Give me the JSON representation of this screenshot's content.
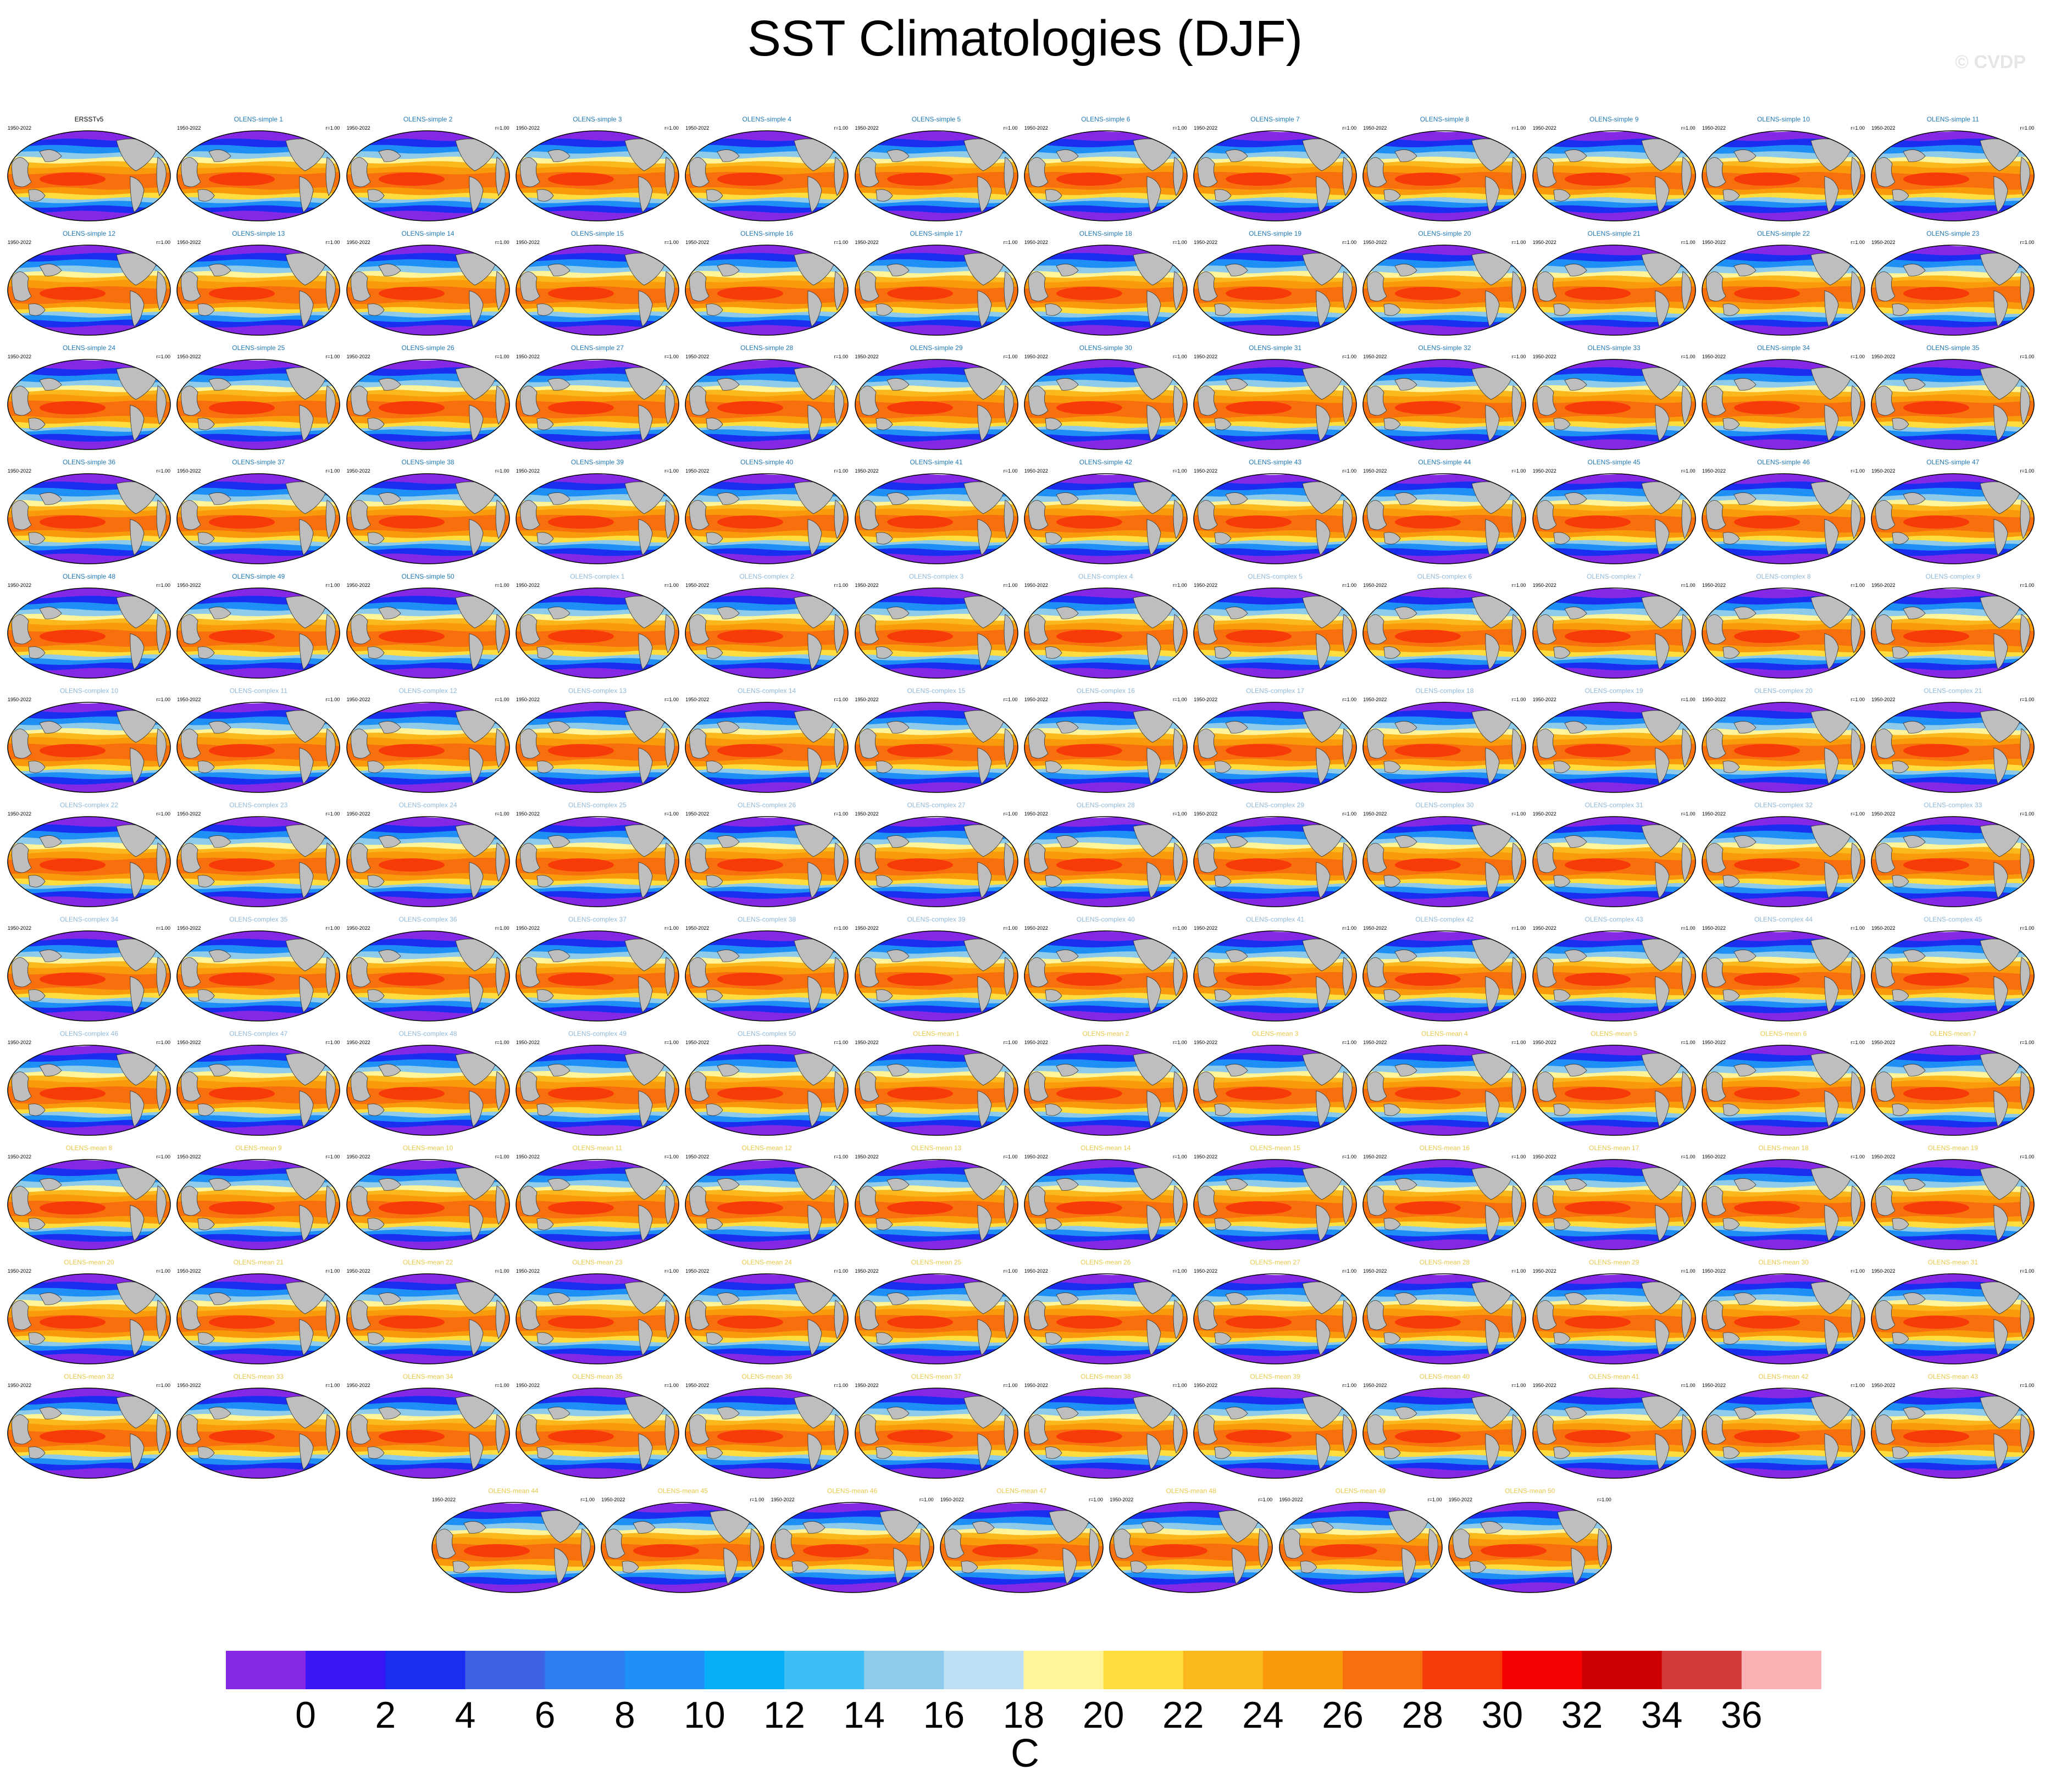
{
  "title": "SST Climatologies (DJF)",
  "watermark": "© CVDP",
  "chart_data": {
    "type": "heatmap",
    "title": "SST Climatologies (DJF)",
    "panel_years": "1950-2022",
    "panel_r_label": "r=1.00",
    "panels": [
      {
        "name": "ERSSTv5",
        "r": ""
      },
      {
        "name": "OLENS-simple 1",
        "r": "r=1.00"
      },
      {
        "name": "OLENS-simple 2",
        "r": "r=1.00"
      },
      {
        "name": "OLENS-simple 3",
        "r": "r=1.00"
      },
      {
        "name": "OLENS-simple 4",
        "r": "r=1.00"
      },
      {
        "name": "OLENS-simple 5",
        "r": "r=1.00"
      },
      {
        "name": "OLENS-simple 6",
        "r": "r=1.00"
      },
      {
        "name": "OLENS-simple 7",
        "r": "r=1.00"
      },
      {
        "name": "OLENS-simple 8",
        "r": "r=1.00"
      },
      {
        "name": "OLENS-simple 9",
        "r": "r=1.00"
      },
      {
        "name": "OLENS-simple 10",
        "r": "r=1.00"
      },
      {
        "name": "OLENS-simple 11",
        "r": "r=1.00"
      },
      {
        "name": "OLENS-simple 12",
        "r": "r=1.00"
      },
      {
        "name": "OLENS-simple 13",
        "r": "r=1.00"
      },
      {
        "name": "OLENS-simple 14",
        "r": "r=1.00"
      },
      {
        "name": "OLENS-simple 15",
        "r": "r=1.00"
      },
      {
        "name": "OLENS-simple 16",
        "r": "r=1.00"
      },
      {
        "name": "OLENS-simple 17",
        "r": "r=1.00"
      },
      {
        "name": "OLENS-simple 18",
        "r": "r=1.00"
      },
      {
        "name": "OLENS-simple 19",
        "r": "r=1.00"
      },
      {
        "name": "OLENS-simple 20",
        "r": "r=1.00"
      },
      {
        "name": "OLENS-simple 21",
        "r": "r=1.00"
      },
      {
        "name": "OLENS-simple 22",
        "r": "r=1.00"
      },
      {
        "name": "OLENS-simple 23",
        "r": "r=1.00"
      },
      {
        "name": "OLENS-simple 24",
        "r": "r=1.00"
      },
      {
        "name": "OLENS-simple 25",
        "r": "r=1.00"
      },
      {
        "name": "OLENS-simple 26",
        "r": "r=1.00"
      },
      {
        "name": "OLENS-simple 27",
        "r": "r=1.00"
      },
      {
        "name": "OLENS-simple 28",
        "r": "r=1.00"
      },
      {
        "name": "OLENS-simple 29",
        "r": "r=1.00"
      },
      {
        "name": "OLENS-simple 30",
        "r": "r=1.00"
      },
      {
        "name": "OLENS-simple 31",
        "r": "r=1.00"
      },
      {
        "name": "OLENS-simple 32",
        "r": "r=1.00"
      },
      {
        "name": "OLENS-simple 33",
        "r": "r=1.00"
      },
      {
        "name": "OLENS-simple 34",
        "r": "r=1.00"
      },
      {
        "name": "OLENS-simple 35",
        "r": "r=1.00"
      },
      {
        "name": "OLENS-simple 36",
        "r": "r=1.00"
      },
      {
        "name": "OLENS-simple 37",
        "r": "r=1.00"
      },
      {
        "name": "OLENS-simple 38",
        "r": "r=1.00"
      },
      {
        "name": "OLENS-simple 39",
        "r": "r=1.00"
      },
      {
        "name": "OLENS-simple 40",
        "r": "r=1.00"
      },
      {
        "name": "OLENS-simple 41",
        "r": "r=1.00"
      },
      {
        "name": "OLENS-simple 42",
        "r": "r=1.00"
      },
      {
        "name": "OLENS-simple 43",
        "r": "r=1.00"
      },
      {
        "name": "OLENS-simple 44",
        "r": "r=1.00"
      },
      {
        "name": "OLENS-simple 45",
        "r": "r=1.00"
      },
      {
        "name": "OLENS-simple 46",
        "r": "r=1.00"
      },
      {
        "name": "OLENS-simple 47",
        "r": "r=1.00"
      },
      {
        "name": "OLENS-simple 48",
        "r": "r=1.00"
      },
      {
        "name": "OLENS-simple 49",
        "r": "r=1.00"
      },
      {
        "name": "OLENS-simple 50",
        "r": "r=1.00"
      },
      {
        "name": "OLENS-complex 1",
        "r": "r=1.00"
      },
      {
        "name": "OLENS-complex 2",
        "r": "r=1.00"
      },
      {
        "name": "OLENS-complex 3",
        "r": "r=1.00"
      },
      {
        "name": "OLENS-complex 4",
        "r": "r=1.00"
      },
      {
        "name": "OLENS-complex 5",
        "r": "r=1.00"
      },
      {
        "name": "OLENS-complex 6",
        "r": "r=1.00"
      },
      {
        "name": "OLENS-complex 7",
        "r": "r=1.00"
      },
      {
        "name": "OLENS-complex 8",
        "r": "r=1.00"
      },
      {
        "name": "OLENS-complex 9",
        "r": "r=1.00"
      },
      {
        "name": "OLENS-complex 10",
        "r": "r=1.00"
      },
      {
        "name": "OLENS-complex 11",
        "r": "r=1.00"
      },
      {
        "name": "OLENS-complex 12",
        "r": "r=1.00"
      },
      {
        "name": "OLENS-complex 13",
        "r": "r=1.00"
      },
      {
        "name": "OLENS-complex 14",
        "r": "r=1.00"
      },
      {
        "name": "OLENS-complex 15",
        "r": "r=1.00"
      },
      {
        "name": "OLENS-complex 16",
        "r": "r=1.00"
      },
      {
        "name": "OLENS-complex 17",
        "r": "r=1.00"
      },
      {
        "name": "OLENS-complex 18",
        "r": "r=1.00"
      },
      {
        "name": "OLENS-complex 19",
        "r": "r=1.00"
      },
      {
        "name": "OLENS-complex 20",
        "r": "r=1.00"
      },
      {
        "name": "OLENS-complex 21",
        "r": "r=1.00"
      },
      {
        "name": "OLENS-complex 22",
        "r": "r=1.00"
      },
      {
        "name": "OLENS-complex 23",
        "r": "r=1.00"
      },
      {
        "name": "OLENS-complex 24",
        "r": "r=1.00"
      },
      {
        "name": "OLENS-complex 25",
        "r": "r=1.00"
      },
      {
        "name": "OLENS-complex 26",
        "r": "r=1.00"
      },
      {
        "name": "OLENS-complex 27",
        "r": "r=1.00"
      },
      {
        "name": "OLENS-complex 28",
        "r": "r=1.00"
      },
      {
        "name": "OLENS-complex 29",
        "r": "r=1.00"
      },
      {
        "name": "OLENS-complex 30",
        "r": "r=1.00"
      },
      {
        "name": "OLENS-complex 31",
        "r": "r=1.00"
      },
      {
        "name": "OLENS-complex 32",
        "r": "r=1.00"
      },
      {
        "name": "OLENS-complex 33",
        "r": "r=1.00"
      },
      {
        "name": "OLENS-complex 34",
        "r": "r=1.00"
      },
      {
        "name": "OLENS-complex 35",
        "r": "r=1.00"
      },
      {
        "name": "OLENS-complex 36",
        "r": "r=1.00"
      },
      {
        "name": "OLENS-complex 37",
        "r": "r=1.00"
      },
      {
        "name": "OLENS-complex 38",
        "r": "r=1.00"
      },
      {
        "name": "OLENS-complex 39",
        "r": "r=1.00"
      },
      {
        "name": "OLENS-complex 40",
        "r": "r=1.00"
      },
      {
        "name": "OLENS-complex 41",
        "r": "r=1.00"
      },
      {
        "name": "OLENS-complex 42",
        "r": "r=1.00"
      },
      {
        "name": "OLENS-complex 43",
        "r": "r=1.00"
      },
      {
        "name": "OLENS-complex 44",
        "r": "r=1.00"
      },
      {
        "name": "OLENS-complex 45",
        "r": "r=1.00"
      },
      {
        "name": "OLENS-complex 46",
        "r": "r=1.00"
      },
      {
        "name": "OLENS-complex 47",
        "r": "r=1.00"
      },
      {
        "name": "OLENS-complex 48",
        "r": "r=1.00"
      },
      {
        "name": "OLENS-complex 49",
        "r": "r=1.00"
      },
      {
        "name": "OLENS-complex 50",
        "r": "r=1.00"
      },
      {
        "name": "OLENS-mean 1",
        "r": "r=1.00"
      },
      {
        "name": "OLENS-mean 2",
        "r": "r=1.00"
      },
      {
        "name": "OLENS-mean 3",
        "r": "r=1.00"
      },
      {
        "name": "OLENS-mean 4",
        "r": "r=1.00"
      },
      {
        "name": "OLENS-mean 5",
        "r": "r=1.00"
      },
      {
        "name": "OLENS-mean 6",
        "r": "r=1.00"
      },
      {
        "name": "OLENS-mean 7",
        "r": "r=1.00"
      },
      {
        "name": "OLENS-mean 8",
        "r": "r=1.00"
      },
      {
        "name": "OLENS-mean 9",
        "r": "r=1.00"
      },
      {
        "name": "OLENS-mean 10",
        "r": "r=1.00"
      },
      {
        "name": "OLENS-mean 11",
        "r": "r=1.00"
      },
      {
        "name": "OLENS-mean 12",
        "r": "r=1.00"
      },
      {
        "name": "OLENS-mean 13",
        "r": "r=1.00"
      },
      {
        "name": "OLENS-mean 14",
        "r": "r=1.00"
      },
      {
        "name": "OLENS-mean 15",
        "r": "r=1.00"
      },
      {
        "name": "OLENS-mean 16",
        "r": "r=1.00"
      },
      {
        "name": "OLENS-mean 17",
        "r": "r=1.00"
      },
      {
        "name": "OLENS-mean 18",
        "r": "r=1.00"
      },
      {
        "name": "OLENS-mean 19",
        "r": "r=1.00"
      },
      {
        "name": "OLENS-mean 20",
        "r": "r=1.00"
      },
      {
        "name": "OLENS-mean 21",
        "r": "r=1.00"
      },
      {
        "name": "OLENS-mean 22",
        "r": "r=1.00"
      },
      {
        "name": "OLENS-mean 23",
        "r": "r=1.00"
      },
      {
        "name": "OLENS-mean 24",
        "r": "r=1.00"
      },
      {
        "name": "OLENS-mean 25",
        "r": "r=1.00"
      },
      {
        "name": "OLENS-mean 26",
        "r": "r=1.00"
      },
      {
        "name": "OLENS-mean 27",
        "r": "r=1.00"
      },
      {
        "name": "OLENS-mean 28",
        "r": "r=1.00"
      },
      {
        "name": "OLENS-mean 29",
        "r": "r=1.00"
      },
      {
        "name": "OLENS-mean 30",
        "r": "r=1.00"
      },
      {
        "name": "OLENS-mean 31",
        "r": "r=1.00"
      },
      {
        "name": "OLENS-mean 32",
        "r": "r=1.00"
      },
      {
        "name": "OLENS-mean 33",
        "r": "r=1.00"
      },
      {
        "name": "OLENS-mean 34",
        "r": "r=1.00"
      },
      {
        "name": "OLENS-mean 35",
        "r": "r=1.00"
      },
      {
        "name": "OLENS-mean 36",
        "r": "r=1.00"
      },
      {
        "name": "OLENS-mean 37",
        "r": "r=1.00"
      },
      {
        "name": "OLENS-mean 38",
        "r": "r=1.00"
      },
      {
        "name": "OLENS-mean 39",
        "r": "r=1.00"
      },
      {
        "name": "OLENS-mean 40",
        "r": "r=1.00"
      },
      {
        "name": "OLENS-mean 41",
        "r": "r=1.00"
      },
      {
        "name": "OLENS-mean 42",
        "r": "r=1.00"
      },
      {
        "name": "OLENS-mean 43",
        "r": "r=1.00"
      },
      {
        "name": "OLENS-mean 44",
        "r": "r=1.00"
      },
      {
        "name": "OLENS-mean 45",
        "r": "r=1.00"
      },
      {
        "name": "OLENS-mean 46",
        "r": "r=1.00"
      },
      {
        "name": "OLENS-mean 47",
        "r": "r=1.00"
      },
      {
        "name": "OLENS-mean 48",
        "r": "r=1.00"
      },
      {
        "name": "OLENS-mean 49",
        "r": "r=1.00"
      },
      {
        "name": "OLENS-mean 50",
        "r": "r=1.00"
      }
    ],
    "title_colors": {
      "ERSSTv5": "#000000",
      "OLENS-simple": "#1f78b4",
      "OLENS-complex": "#8fb8d8",
      "OLENS-mean": "#e8c84a"
    },
    "colorbar": {
      "unit": "C",
      "ticks": [
        0,
        2,
        4,
        6,
        8,
        10,
        12,
        14,
        16,
        18,
        20,
        22,
        24,
        26,
        28,
        30,
        32,
        34,
        36
      ],
      "colors": [
        "#8428e6",
        "#3a16f5",
        "#1a2ef0",
        "#3d62e6",
        "#2e7ef0",
        "#1e90f5",
        "#08aef8",
        "#3fbef6",
        "#8ecbea",
        "#bfe0f4",
        "#fff49a",
        "#fedd3c",
        "#fbb81c",
        "#f99a0c",
        "#f8700e",
        "#f63a08",
        "#f50000",
        "#cc0000",
        "#d43a3a",
        "#fbb2b4"
      ]
    },
    "land_color": "#bebebe"
  }
}
